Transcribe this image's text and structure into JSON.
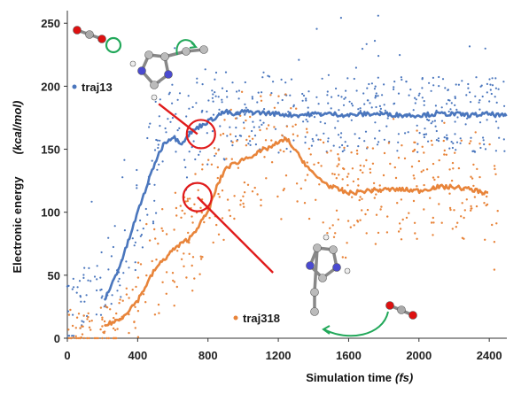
{
  "chart_data": {
    "type": "scatter",
    "title": "",
    "xlabel": "Simulation time",
    "xlabel_unit": "(fs)",
    "ylabel": "Electronic energy",
    "ylabel_unit": "(kcal/mol)",
    "xlim": [
      0,
      2500
    ],
    "ylim": [
      0,
      260
    ],
    "xticks": [
      0,
      400,
      800,
      1200,
      1600,
      2000,
      2400
    ],
    "yticks": [
      0,
      50,
      100,
      150,
      200,
      250
    ],
    "grid": false,
    "colors": {
      "traj13": "#4a76bd",
      "traj318": "#e8843a",
      "markers": "#e01b1b",
      "arrows": "#22a85a"
    },
    "series": [
      {
        "name": "traj13",
        "label_position": "left, y≈200",
        "line_x": [
          210,
          250,
          300,
          350,
          400,
          450,
          500,
          550,
          600,
          650,
          700,
          750,
          800,
          850,
          900,
          950,
          1000,
          1100,
          1200,
          1300,
          1400,
          1500,
          1600,
          1700,
          1800,
          1900,
          2000,
          2100,
          2200,
          2300,
          2400,
          2500
        ],
        "line_y": [
          30,
          42,
          58,
          78,
          100,
          120,
          140,
          155,
          160,
          155,
          163,
          168,
          172,
          176,
          180,
          177,
          180,
          179,
          178,
          177,
          178,
          178,
          177,
          178,
          178,
          177,
          177,
          178,
          178,
          177,
          178,
          176
        ],
        "scatter_band": [
          [
            0,
            2500
          ],
          [
            5,
            255
          ]
        ]
      },
      {
        "name": "traj318",
        "label_position": "lower middle, y≈15",
        "line_x": [
          210,
          300,
          400,
          500,
          600,
          700,
          800,
          850,
          900,
          1000,
          1100,
          1200,
          1250,
          1300,
          1400,
          1500,
          1600,
          1700,
          1800,
          1900,
          2000,
          2100,
          2200,
          2300,
          2400
        ],
        "line_y": [
          10,
          15,
          30,
          55,
          70,
          80,
          100,
          120,
          135,
          142,
          148,
          155,
          158,
          148,
          130,
          120,
          115,
          117,
          118,
          118,
          117,
          120,
          120,
          118,
          115
        ],
        "scatter_band": [
          [
            0,
            2450
          ],
          [
            0,
            220
          ]
        ]
      }
    ],
    "annotations": [
      {
        "type": "circle-marker",
        "x": 760,
        "y": 162
      },
      {
        "type": "circle-marker",
        "x": 740,
        "y": 112
      },
      {
        "type": "pointer-line",
        "from": [
          520,
          186
        ],
        "to": [
          740,
          162
        ]
      },
      {
        "type": "pointer-line",
        "from": [
          740,
          112
        ],
        "to": [
          1170,
          52
        ]
      }
    ]
  }
}
